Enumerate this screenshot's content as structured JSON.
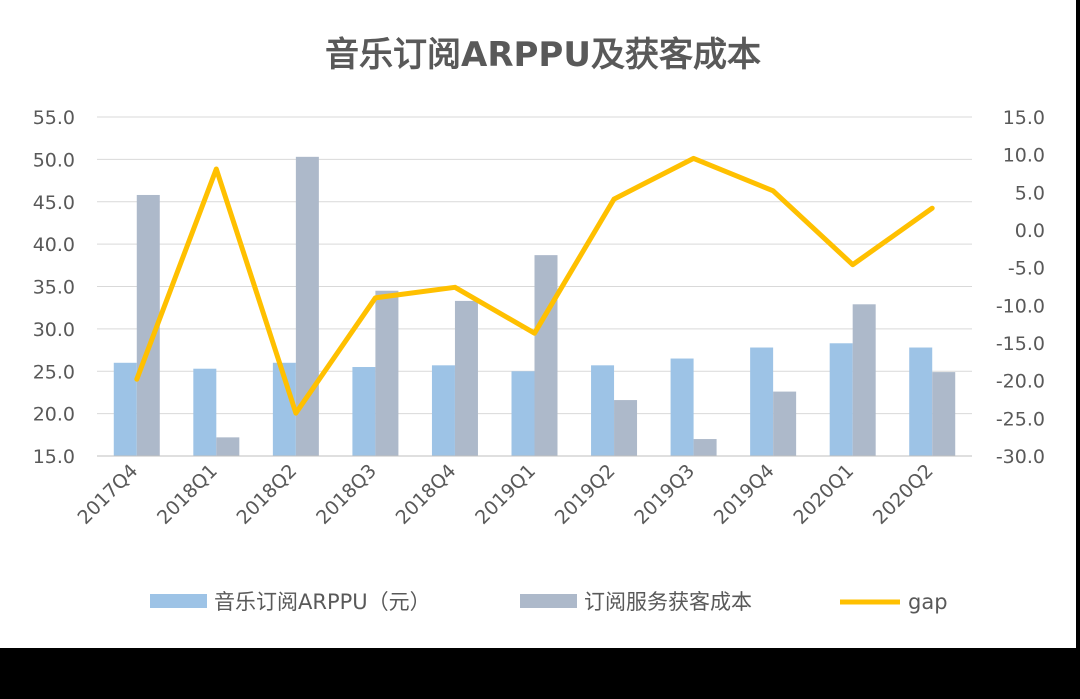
{
  "chart_data": {
    "type": "bar",
    "title": "音乐订阅ARPPU及获客成本",
    "categories": [
      "2017Q4",
      "2018Q1",
      "2018Q2",
      "2018Q3",
      "2018Q4",
      "2019Q1",
      "2019Q2",
      "2019Q3",
      "2019Q4",
      "2020Q1",
      "2020Q2"
    ],
    "series": [
      {
        "name": "音乐订阅ARPPU（元）",
        "type": "bar",
        "axis": "left",
        "color": "#9DC3E6",
        "values": [
          26.0,
          25.3,
          26.0,
          25.5,
          25.7,
          25.0,
          25.7,
          26.5,
          27.8,
          28.3,
          27.8
        ]
      },
      {
        "name": "订阅服务获客成本",
        "type": "bar",
        "axis": "left",
        "color": "#ADB9CA",
        "values": [
          45.8,
          17.2,
          50.3,
          34.5,
          33.3,
          38.7,
          21.6,
          17.0,
          22.6,
          32.9,
          24.9
        ]
      },
      {
        "name": "gap",
        "type": "line",
        "axis": "right",
        "color": "#FFC000",
        "values": [
          -19.8,
          8.1,
          -24.3,
          -9.0,
          -7.6,
          -13.7,
          4.1,
          9.5,
          5.2,
          -4.6,
          2.9
        ]
      }
    ],
    "y_left": {
      "min": 15.0,
      "max": 55.0,
      "step": 5.0,
      "tick_labels": [
        "15.0",
        "20.0",
        "25.0",
        "30.0",
        "35.0",
        "40.0",
        "45.0",
        "50.0",
        "55.0"
      ]
    },
    "y_right": {
      "min": -30.0,
      "max": 15.0,
      "step": 5.0,
      "tick_labels": [
        "-30.0",
        "-25.0",
        "-20.0",
        "-15.0",
        "-10.0",
        "-5.0",
        "0.0",
        "5.0",
        "10.0",
        "15.0"
      ]
    },
    "grid": true,
    "legend_position": "bottom"
  }
}
